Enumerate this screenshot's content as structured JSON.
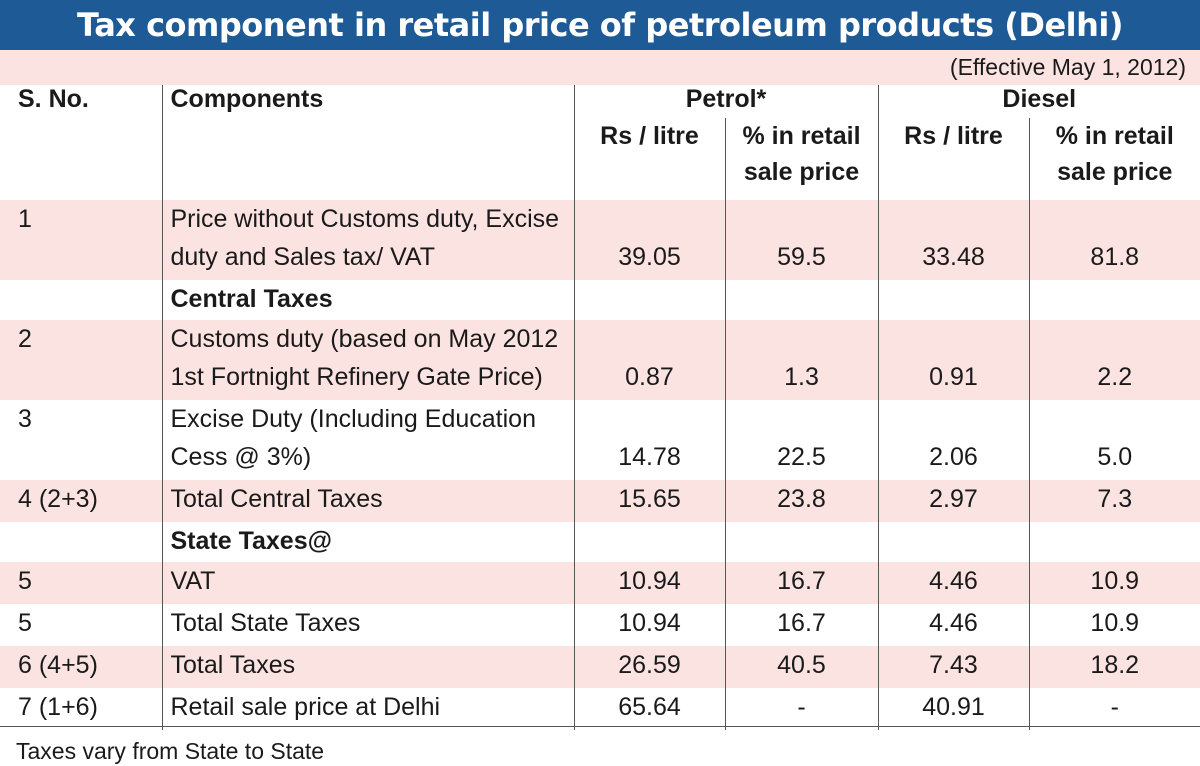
{
  "title": "Tax component in retail price of petroleum products (Delhi)",
  "effective": "(Effective May 1, 2012)",
  "headers": {
    "sno": "S. No.",
    "components": "Components",
    "petrol": "Petrol*",
    "diesel": "Diesel",
    "rs_litre": "Rs / litre",
    "pct_retail": "% in retail sale price"
  },
  "rows": [
    {
      "sno": "1",
      "component": "Price without Customs duty, Excise duty and Sales tax/ VAT",
      "petrol_rs": "39.05",
      "petrol_pct": "59.5",
      "diesel_rs": "33.48",
      "diesel_pct": "81.8"
    },
    {
      "sno": "",
      "component": "Central Taxes",
      "petrol_rs": "",
      "petrol_pct": "",
      "diesel_rs": "",
      "diesel_pct": ""
    },
    {
      "sno": "2",
      "component": "Customs duty (based on May 2012 1st Fortnight Refinery Gate Price)",
      "petrol_rs": "0.87",
      "petrol_pct": "1.3",
      "diesel_rs": "0.91",
      "diesel_pct": "2.2"
    },
    {
      "sno": "3",
      "component": "Excise Duty (Including Education Cess @ 3%)",
      "petrol_rs": "14.78",
      "petrol_pct": "22.5",
      "diesel_rs": "2.06",
      "diesel_pct": "5.0"
    },
    {
      "sno": "4 (2+3)",
      "component": "Total Central Taxes",
      "petrol_rs": "15.65",
      "petrol_pct": "23.8",
      "diesel_rs": "2.97",
      "diesel_pct": "7.3"
    },
    {
      "sno": "",
      "component": "State Taxes@",
      "petrol_rs": "",
      "petrol_pct": "",
      "diesel_rs": "",
      "diesel_pct": ""
    },
    {
      "sno": "5",
      "component": "VAT",
      "petrol_rs": "10.94",
      "petrol_pct": "16.7",
      "diesel_rs": "4.46",
      "diesel_pct": "10.9"
    },
    {
      "sno": "5",
      "component": "Total State Taxes",
      "petrol_rs": "10.94",
      "petrol_pct": "16.7",
      "diesel_rs": "4.46",
      "diesel_pct": "10.9"
    },
    {
      "sno": "6 (4+5)",
      "component": "Total Taxes",
      "petrol_rs": "26.59",
      "petrol_pct": "40.5",
      "diesel_rs": "7.43",
      "diesel_pct": "18.2"
    },
    {
      "sno": "7 (1+6)",
      "component": "Retail sale price at Delhi",
      "petrol_rs": "65.64",
      "petrol_pct": "-",
      "diesel_rs": "40.91",
      "diesel_pct": "-"
    }
  ],
  "footnote": "Taxes vary from State to State",
  "colors": {
    "title_bg": "#1d5a96",
    "title_text": "#ffffff",
    "shade": "#fbe3e2",
    "rule": "#555555"
  },
  "chart_data": {
    "type": "table",
    "title": "Tax component in retail price of petroleum products (Delhi)",
    "subtitle": "(Effective May 1, 2012)",
    "columns": [
      "S. No.",
      "Components",
      "Petrol* Rs / litre",
      "Petrol* % in retail sale price",
      "Diesel Rs / litre",
      "Diesel % in retail sale price"
    ],
    "rows": [
      [
        "1",
        "Price without Customs duty, Excise duty and Sales tax/ VAT",
        39.05,
        59.5,
        33.48,
        81.8
      ],
      [
        "",
        "Central Taxes",
        null,
        null,
        null,
        null
      ],
      [
        "2",
        "Customs duty (based on May 2012 1st Fortnight Refinery Gate Price)",
        0.87,
        1.3,
        0.91,
        2.2
      ],
      [
        "3",
        "Excise Duty (Including Education Cess @ 3%)",
        14.78,
        22.5,
        2.06,
        5.0
      ],
      [
        "4 (2+3)",
        "Total Central Taxes",
        15.65,
        23.8,
        2.97,
        7.3
      ],
      [
        "",
        "State Taxes@",
        null,
        null,
        null,
        null
      ],
      [
        "5",
        "VAT",
        10.94,
        16.7,
        4.46,
        10.9
      ],
      [
        "5",
        "Total State Taxes",
        10.94,
        16.7,
        4.46,
        10.9
      ],
      [
        "6 (4+5)",
        "Total Taxes",
        26.59,
        40.5,
        7.43,
        18.2
      ],
      [
        "7 (1+6)",
        "Retail sale price at Delhi",
        65.64,
        "-",
        40.91,
        "-"
      ]
    ],
    "footnote": "Taxes vary from State to State"
  }
}
